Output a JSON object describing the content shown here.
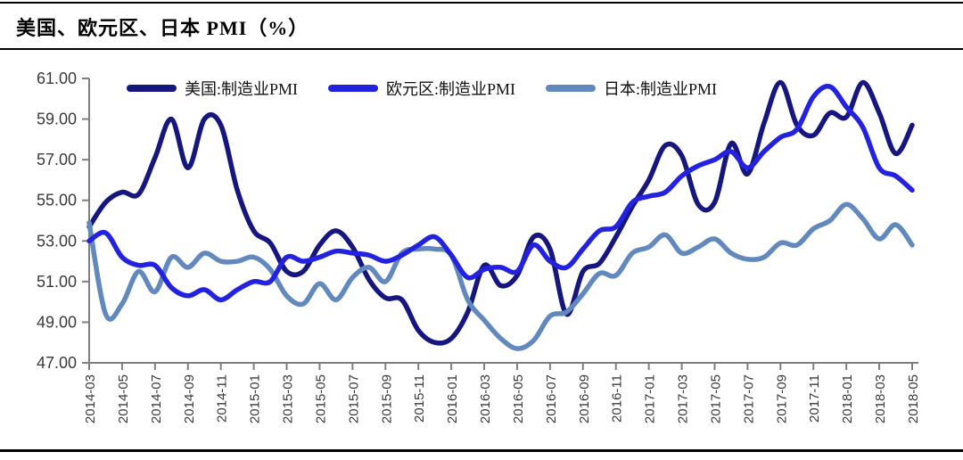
{
  "page": {
    "title": "美国、欧元区、日本 PMI（%）"
  },
  "chart_data": {
    "type": "line",
    "title": "美国、欧元区、日本 PMI（%）",
    "grid": false,
    "legend_position": "top-inside",
    "ylim": [
      47,
      61
    ],
    "y_tick_labels": [
      "47.00",
      "49.00",
      "51.00",
      "53.00",
      "55.00",
      "57.00",
      "59.00",
      "61.00"
    ],
    "x_tick_labels": [
      "2014-03",
      "2014-05",
      "2014-07",
      "2014-09",
      "2014-11",
      "2015-01",
      "2015-03",
      "2015-05",
      "2015-07",
      "2015-09",
      "2015-11",
      "2016-01",
      "2016-03",
      "2016-05",
      "2016-07",
      "2016-09",
      "2016-11",
      "2017-01",
      "2017-03",
      "2017-05",
      "2017-07",
      "2017-09",
      "2017-11",
      "2018-01",
      "2018-03",
      "2018-05"
    ],
    "x": [
      "2014-03",
      "2014-04",
      "2014-05",
      "2014-06",
      "2014-07",
      "2014-08",
      "2014-09",
      "2014-10",
      "2014-11",
      "2014-12",
      "2015-01",
      "2015-02",
      "2015-03",
      "2015-04",
      "2015-05",
      "2015-06",
      "2015-07",
      "2015-08",
      "2015-09",
      "2015-10",
      "2015-11",
      "2015-12",
      "2016-01",
      "2016-02",
      "2016-03",
      "2016-04",
      "2016-05",
      "2016-06",
      "2016-07",
      "2016-08",
      "2016-09",
      "2016-10",
      "2016-11",
      "2016-12",
      "2017-01",
      "2017-02",
      "2017-03",
      "2017-04",
      "2017-05",
      "2017-06",
      "2017-07",
      "2017-08",
      "2017-09",
      "2017-10",
      "2017-11",
      "2017-12",
      "2018-01",
      "2018-02",
      "2018-03",
      "2018-04",
      "2018-05"
    ],
    "series": [
      {
        "name": "美国:制造业PMI",
        "color": "#16167F",
        "values": [
          53.7,
          54.9,
          55.4,
          55.3,
          57.1,
          59.0,
          56.6,
          59.0,
          58.7,
          55.5,
          53.5,
          52.9,
          51.5,
          51.5,
          52.8,
          53.5,
          52.7,
          51.1,
          50.2,
          50.1,
          48.6,
          48.0,
          48.2,
          49.5,
          51.8,
          50.8,
          51.3,
          53.2,
          52.6,
          49.4,
          51.5,
          51.9,
          53.2,
          54.7,
          56.0,
          57.7,
          57.2,
          54.8,
          54.9,
          57.8,
          56.3,
          58.8,
          60.8,
          58.7,
          58.2,
          59.3,
          59.1,
          60.8,
          59.3,
          57.3,
          58.7
        ]
      },
      {
        "name": "欧元区:制造业PMI",
        "color": "#2222E0",
        "values": [
          53.0,
          53.4,
          52.2,
          51.8,
          51.8,
          50.7,
          50.3,
          50.6,
          50.1,
          50.6,
          51.0,
          51.0,
          52.2,
          52.0,
          52.2,
          52.5,
          52.4,
          52.3,
          52.0,
          52.3,
          52.8,
          53.2,
          52.3,
          51.2,
          51.6,
          51.7,
          51.5,
          52.8,
          52.0,
          51.7,
          52.6,
          53.5,
          53.7,
          54.9,
          55.2,
          55.4,
          56.2,
          56.7,
          57.0,
          57.4,
          56.6,
          57.4,
          58.1,
          58.5,
          60.1,
          60.6,
          59.6,
          58.6,
          56.6,
          56.2,
          55.5
        ]
      },
      {
        "name": "日本:制造业PMI",
        "color": "#6189BE",
        "values": [
          53.9,
          49.4,
          49.9,
          51.5,
          50.5,
          52.2,
          51.7,
          52.4,
          52.0,
          52.0,
          52.2,
          51.6,
          50.3,
          49.9,
          50.9,
          50.1,
          51.2,
          51.7,
          51.0,
          52.4,
          52.6,
          52.6,
          52.3,
          50.1,
          49.1,
          48.2,
          47.7,
          48.1,
          49.3,
          49.5,
          50.4,
          51.4,
          51.3,
          52.4,
          52.7,
          53.3,
          52.4,
          52.7,
          53.1,
          52.4,
          52.1,
          52.2,
          52.9,
          52.8,
          53.6,
          54.0,
          54.8,
          54.1,
          53.1,
          53.8,
          52.8
        ]
      }
    ],
    "style": {
      "axis_color": "#7F7F7F",
      "tick_label_color": "#3A3A3A",
      "line_width": 5.5
    }
  }
}
